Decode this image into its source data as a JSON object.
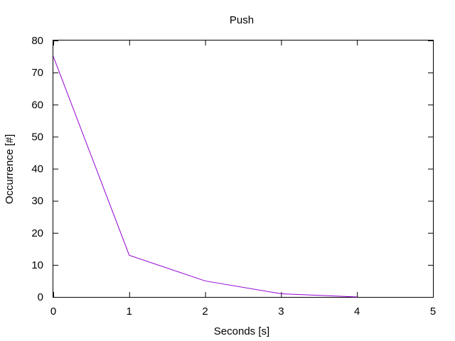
{
  "chart_data": {
    "type": "line",
    "title": "Push",
    "xlabel": "Seconds [s]",
    "ylabel": "Occurrence [#]",
    "xlim": [
      0,
      5
    ],
    "ylim": [
      0,
      80
    ],
    "xticks": [
      0,
      1,
      2,
      3,
      4,
      5
    ],
    "yticks": [
      0,
      10,
      20,
      30,
      40,
      50,
      60,
      70,
      80
    ],
    "x": [
      0,
      1,
      2,
      3,
      4
    ],
    "series": [
      {
        "values": [
          75,
          13,
          5,
          1,
          0
        ],
        "color": "#9400d3"
      }
    ],
    "grid": false,
    "legend": "none"
  }
}
